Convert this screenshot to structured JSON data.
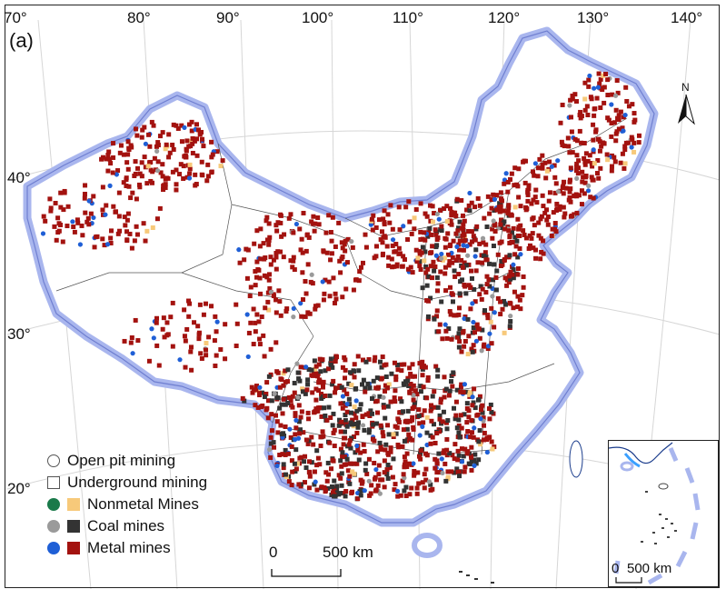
{
  "panel_label": "(a)",
  "longitude_labels": [
    "70°",
    "80°",
    "90°",
    "100°",
    "110°",
    "120°",
    "130°",
    "140°"
  ],
  "latitude_labels": [
    "40°",
    "30°",
    "20°"
  ],
  "north_arrow_label": "N",
  "legend": {
    "items": [
      {
        "label": "Open pit mining",
        "circle": "#ffffff",
        "square": null
      },
      {
        "label": "Underground mining",
        "circle": null,
        "square": "#ffffff"
      },
      {
        "label": "Nonmetal Mines",
        "circle": "#1a7a4a",
        "square": "#f7c97a"
      },
      {
        "label": "Coal mines",
        "circle": "#9a9a9a",
        "square": "#333333"
      },
      {
        "label": "Metal mines",
        "circle": "#1f5fd6",
        "square": "#a3120f"
      }
    ]
  },
  "scale_bar": {
    "zero": "0",
    "end": "500 km"
  },
  "inset_scale_bar": {
    "zero": "0",
    "end": "500 km"
  },
  "colors": {
    "land": "#ffffff",
    "border_glow": "#a9b6ee",
    "coast": "#1a3c8c",
    "metal_square": "#a3120f",
    "metal_circle": "#1f5fd6",
    "coal_square": "#333333",
    "coal_circle": "#9a9a9a",
    "nonmetal_square": "#f7c97a",
    "nonmetal_circle": "#1a7a4a"
  }
}
